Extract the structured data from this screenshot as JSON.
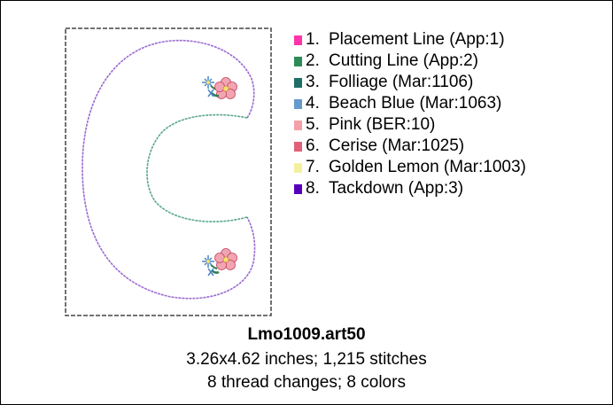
{
  "legend": [
    {
      "num": "1.",
      "label": "Placement Line (App:1)",
      "color": "#ff33aa"
    },
    {
      "num": "2.",
      "label": "Cutting Line (App:2)",
      "color": "#2e8b57"
    },
    {
      "num": "3.",
      "label": "Folliage (Mar:1106)",
      "color": "#1f6f66"
    },
    {
      "num": "4.",
      "label": "Beach Blue (Mar:1063)",
      "color": "#6699cc"
    },
    {
      "num": "5.",
      "label": "Pink (BER:10)",
      "color": "#f4a0a8"
    },
    {
      "num": "6.",
      "label": "Cerise (Mar:1025)",
      "color": "#e0607a"
    },
    {
      "num": "7.",
      "label": "Golden Lemon (Mar:1003)",
      "color": "#f5f0a0"
    },
    {
      "num": "8.",
      "label": "Tackdown (App:3)",
      "color": "#5500bb"
    }
  ],
  "file": {
    "name": "Lmo1009.art50",
    "stats": "3.26x4.62 inches; 1,215 stitches",
    "changes": "8 thread changes; 8 colors"
  }
}
